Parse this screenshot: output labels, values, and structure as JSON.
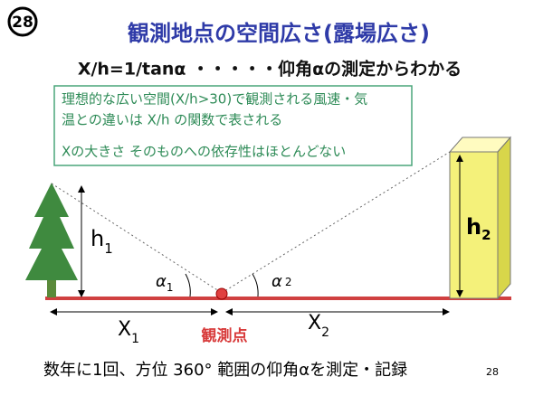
{
  "slide_number_badge": "28",
  "title": "観測地点の空間広さ(露場広さ)",
  "formula": "X/h=1/tanα ・・・・・仰角αの測定からわかる",
  "note_box": {
    "lines": [
      "理想的な広い空間(X/h>30)で観測される風速・気",
      "温との違いは X/h の関数で表される",
      "Xの大きさ そのものへの依存性はほとんどない"
    ]
  },
  "diagram": {
    "h1": {
      "main": "h",
      "sub": "1"
    },
    "h2": {
      "main": "h",
      "sub": "2"
    },
    "alpha1": {
      "main": "α",
      "sub": "1"
    },
    "alpha2": {
      "main": "α",
      "sub": "2"
    },
    "x1": {
      "main": "X",
      "sub": "1"
    },
    "x2": {
      "main": "X",
      "sub": "2"
    },
    "observation_point": "観測点"
  },
  "footer": "数年に1回、方位 360° 範囲の仰角αを測定・記録",
  "page_number": "28"
}
